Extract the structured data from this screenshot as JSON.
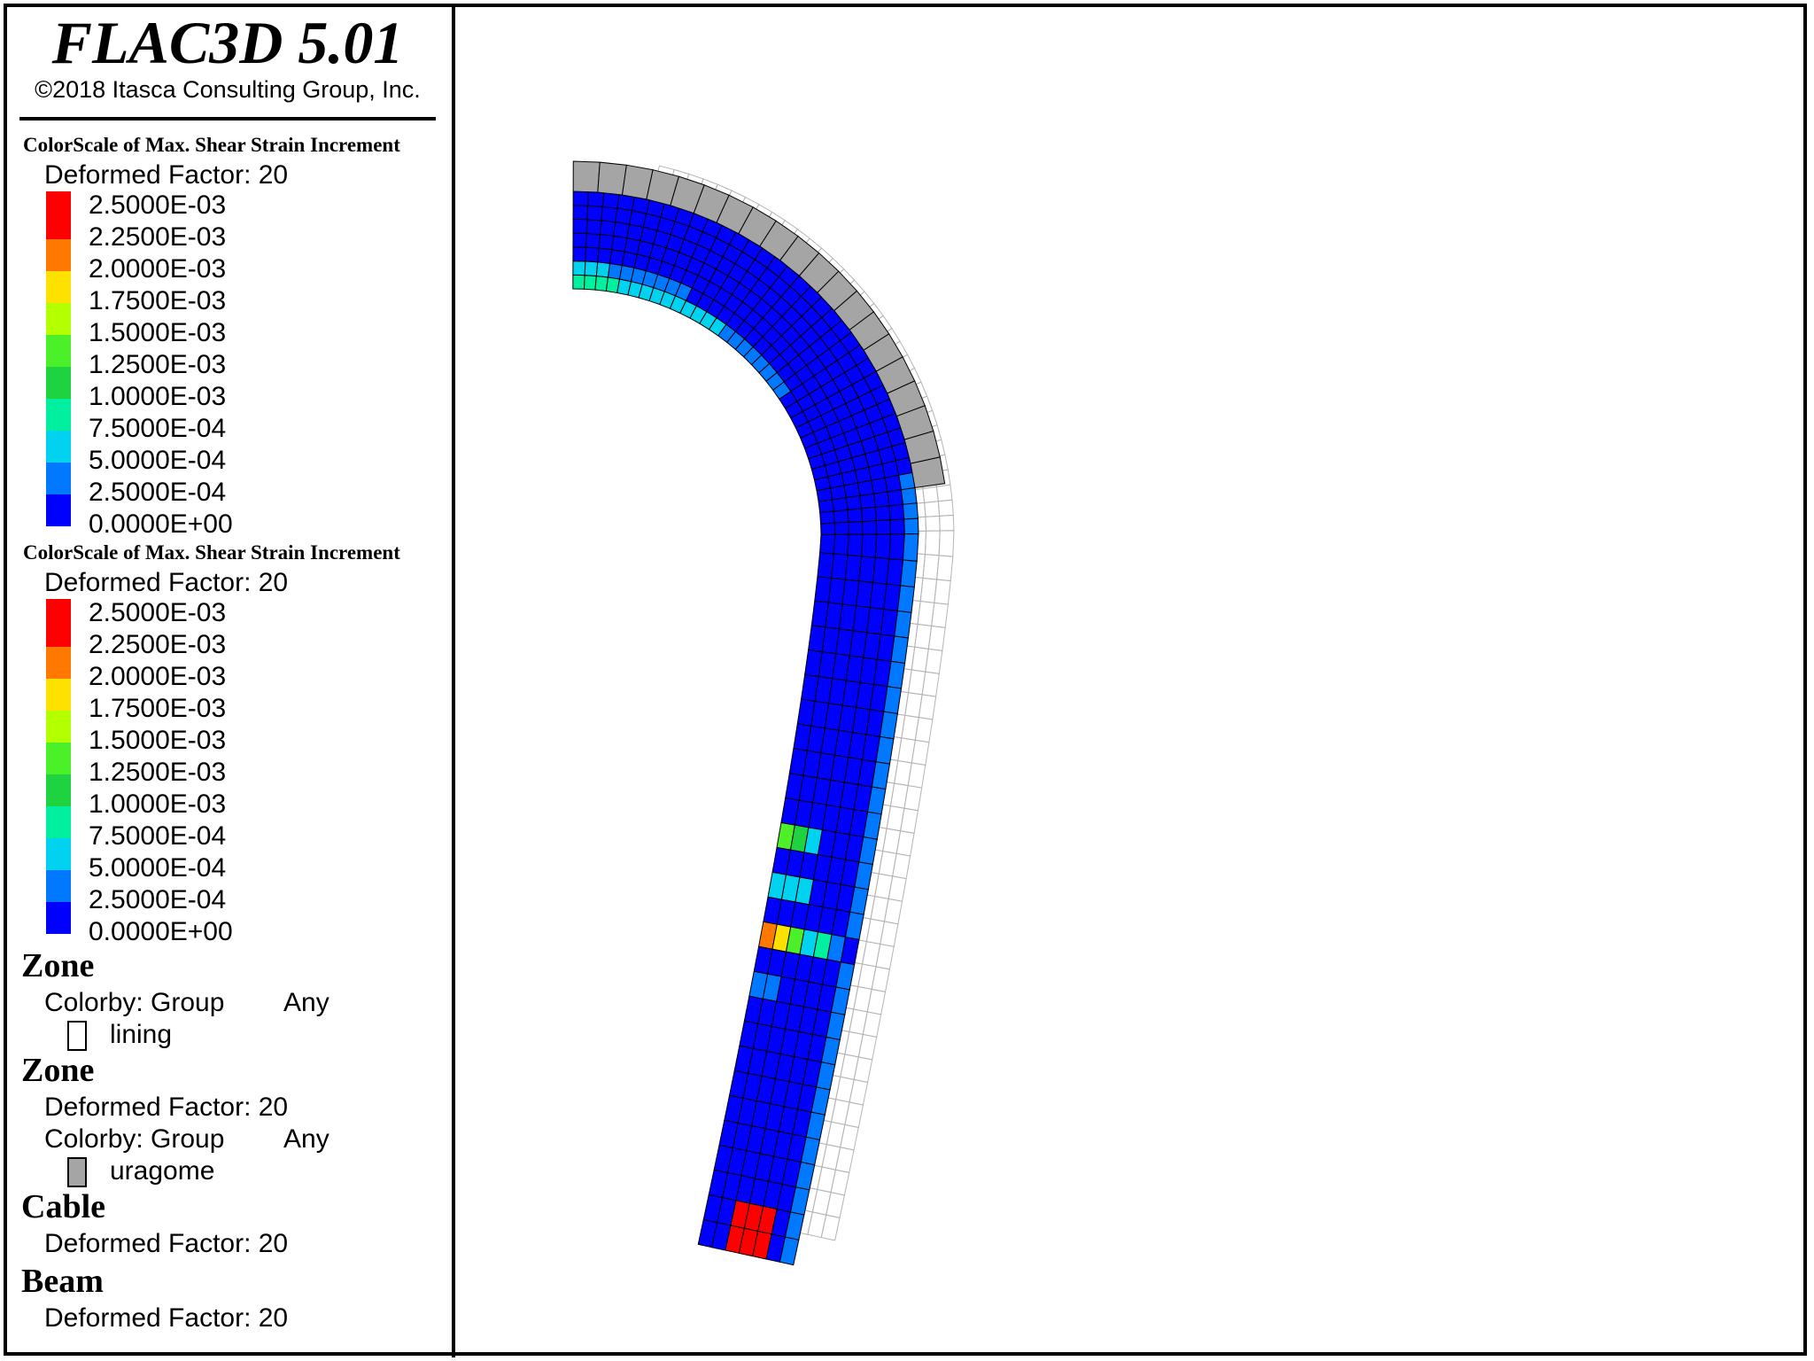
{
  "app": {
    "title": "FLAC3D 5.01",
    "copyright": "©2018 Itasca Consulting Group, Inc."
  },
  "colors": {
    "scale": [
      "#ff0000",
      "#ff7800",
      "#ffe100",
      "#b4ff00",
      "#4bf028",
      "#1ed240",
      "#00f0a0",
      "#00d2f0",
      "#0078ff",
      "#0000ff"
    ],
    "lining_group": "#ffffff",
    "uragome_group": "#a5a5a5",
    "mesh_line": "#000000",
    "ghost_mesh_line": "#b4b4b4"
  },
  "legend": {
    "scales": [
      {
        "title": "ColorScale of Max. Shear Strain Increment",
        "deformed": "Deformed Factor: 20",
        "labels": [
          "2.5000E-03",
          "2.2500E-03",
          "2.0000E-03",
          "1.7500E-03",
          "1.5000E-03",
          "1.2500E-03",
          "1.0000E-03",
          "7.5000E-04",
          "5.0000E-04",
          "2.5000E-04",
          "0.0000E+00"
        ]
      },
      {
        "title": "ColorScale of Max. Shear Strain Increment",
        "deformed": "Deformed Factor: 20",
        "labels": [
          "2.5000E-03",
          "2.2500E-03",
          "2.0000E-03",
          "1.7500E-03",
          "1.5000E-03",
          "1.2500E-03",
          "1.0000E-03",
          "7.5000E-04",
          "5.0000E-04",
          "2.5000E-04",
          "0.0000E+00"
        ]
      }
    ],
    "zone1": {
      "heading": "Zone",
      "colorby": "Colorby: Group",
      "any": "Any",
      "group": "lining"
    },
    "zone2": {
      "heading": "Zone",
      "deformed": "Deformed Factor: 20",
      "colorby": "Colorby: Group",
      "any": "Any",
      "group": "uragome"
    },
    "cable": {
      "heading": "Cable",
      "deformed": "Deformed Factor: 20"
    },
    "beam": {
      "heading": "Beam",
      "deformed": "Deformed Factor: 20"
    }
  }
}
